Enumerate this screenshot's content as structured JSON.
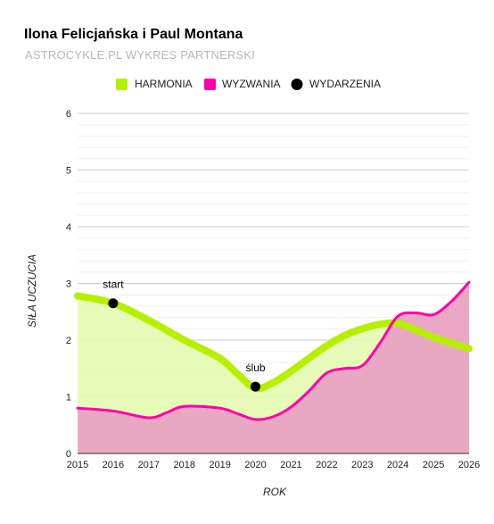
{
  "chart_data": {
    "type": "area",
    "title": "Ilona Felicjańska i Paul Montana",
    "subtitle": "ASTROCYKLE.PL WYKRES PARTNERSKI",
    "xlabel": "ROK",
    "ylabel": "SIŁA UCZUCIA",
    "xlim": [
      2015,
      2026
    ],
    "ylim": [
      0,
      6
    ],
    "x_ticks": [
      2015,
      2016,
      2017,
      2018,
      2019,
      2020,
      2021,
      2022,
      2023,
      2024,
      2025,
      2026
    ],
    "y_ticks": [
      0,
      1,
      2,
      3,
      4,
      5,
      6
    ],
    "grid": true,
    "legend_position": "top",
    "series": [
      {
        "name": "HARMONIA",
        "color": "#b5f000",
        "fill": "#e3fbb0",
        "x": [
          2015,
          2016,
          2017,
          2018,
          2019,
          2019.5,
          2020,
          2020.5,
          2021,
          2021.5,
          2022,
          2022.5,
          2023,
          2023.5,
          2024,
          2024.5,
          2025,
          2025.5,
          2026
        ],
        "values": [
          2.78,
          2.65,
          2.35,
          2.0,
          1.68,
          1.4,
          1.15,
          1.25,
          1.45,
          1.68,
          1.9,
          2.08,
          2.2,
          2.28,
          2.3,
          2.18,
          2.05,
          1.95,
          1.85
        ]
      },
      {
        "name": "WYZWANIA",
        "color": "#ff00a8",
        "fill": "#ffaaf0",
        "x": [
          2015,
          2016,
          2017,
          2017.5,
          2018,
          2019,
          2019.5,
          2020,
          2020.5,
          2021,
          2021.5,
          2022,
          2022.5,
          2023,
          2023.5,
          2024,
          2024.5,
          2025,
          2025.5,
          2026
        ],
        "values": [
          0.8,
          0.75,
          0.63,
          0.72,
          0.83,
          0.8,
          0.7,
          0.6,
          0.65,
          0.82,
          1.1,
          1.42,
          1.5,
          1.55,
          1.95,
          2.42,
          2.48,
          2.45,
          2.68,
          3.02
        ]
      }
    ],
    "events": {
      "name": "WYDARZENIA",
      "color": "#000000",
      "points": [
        {
          "label": "start",
          "x": 2016,
          "y": 2.65
        },
        {
          "label": "ślub",
          "x": 2020,
          "y": 1.18
        }
      ]
    }
  }
}
